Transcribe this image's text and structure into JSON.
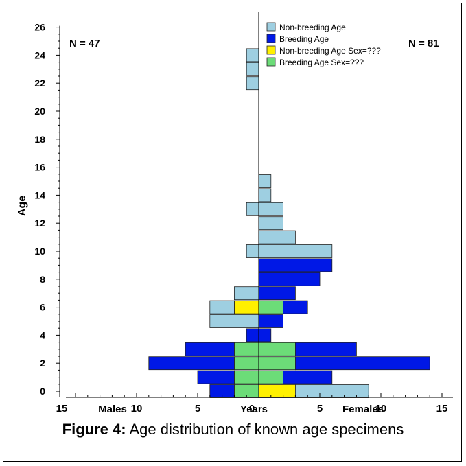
{
  "chart_data": {
    "type": "bar",
    "orientation": "horizontal-population-pyramid",
    "ylabel": "Age",
    "y_ticks": [
      0,
      2,
      4,
      6,
      8,
      10,
      12,
      14,
      16,
      18,
      20,
      22,
      24,
      26
    ],
    "x_tick_labels": [
      "15",
      "10",
      "5",
      "0",
      "5",
      "10",
      "15"
    ],
    "x_tick_values": [
      -15,
      -10,
      -5,
      0,
      5,
      10,
      15
    ],
    "xlim": [
      -15,
      15
    ],
    "ylim": [
      0,
      26
    ],
    "xlabel_left": "Males",
    "xlabel_center": "Years",
    "xlabel_right": "Females",
    "n_males": "N = 47",
    "n_females": "N = 81",
    "legend_position": "top-right",
    "legend": [
      {
        "key": "nonbreeding",
        "label": "Non-breeding Age",
        "color": "#9ecfe1"
      },
      {
        "key": "breeding",
        "label": "Breeding Age",
        "color": "#0018e6"
      },
      {
        "key": "nb_unknown",
        "label": "Non-breeding Age Sex=???",
        "color": "#fff000"
      },
      {
        "key": "b_unknown",
        "label": "Breeding Age Sex=???",
        "color": "#6cdc78"
      }
    ],
    "bars": [
      {
        "age": 0,
        "sex": "unknown",
        "category": "b_unknown",
        "from": -2,
        "to": 0
      },
      {
        "age": 0,
        "sex": "male",
        "category": "breeding",
        "from": -4,
        "to": -2
      },
      {
        "age": 0,
        "sex": "unknown",
        "category": "nb_unknown",
        "from": 0,
        "to": 3
      },
      {
        "age": 0,
        "sex": "female",
        "category": "nonbreeding",
        "from": 3,
        "to": 9
      },
      {
        "age": 1,
        "sex": "unknown",
        "category": "b_unknown",
        "from": -2,
        "to": 0
      },
      {
        "age": 1,
        "sex": "male",
        "category": "breeding",
        "from": -5,
        "to": -2
      },
      {
        "age": 1,
        "sex": "unknown",
        "category": "b_unknown",
        "from": 0,
        "to": 2
      },
      {
        "age": 1,
        "sex": "female",
        "category": "breeding",
        "from": 2,
        "to": 6
      },
      {
        "age": 2,
        "sex": "unknown",
        "category": "b_unknown",
        "from": -2,
        "to": 0
      },
      {
        "age": 2,
        "sex": "male",
        "category": "breeding",
        "from": -9,
        "to": -2
      },
      {
        "age": 2,
        "sex": "unknown",
        "category": "b_unknown",
        "from": 0,
        "to": 3
      },
      {
        "age": 2,
        "sex": "female",
        "category": "breeding",
        "from": 3,
        "to": 14
      },
      {
        "age": 3,
        "sex": "unknown",
        "category": "b_unknown",
        "from": -2,
        "to": 0
      },
      {
        "age": 3,
        "sex": "male",
        "category": "breeding",
        "from": -6,
        "to": -2
      },
      {
        "age": 3,
        "sex": "unknown",
        "category": "b_unknown",
        "from": 0,
        "to": 3
      },
      {
        "age": 3,
        "sex": "female",
        "category": "breeding",
        "from": 3,
        "to": 8
      },
      {
        "age": 4,
        "sex": "male",
        "category": "breeding",
        "from": -1,
        "to": 0
      },
      {
        "age": 4,
        "sex": "female",
        "category": "breeding",
        "from": 0,
        "to": 1
      },
      {
        "age": 5,
        "sex": "male",
        "category": "nonbreeding",
        "from": -4,
        "to": 0
      },
      {
        "age": 5,
        "sex": "female",
        "category": "breeding",
        "from": 0,
        "to": 2
      },
      {
        "age": 6,
        "sex": "unknown",
        "category": "nb_unknown",
        "from": -2,
        "to": 0
      },
      {
        "age": 6,
        "sex": "male",
        "category": "nonbreeding",
        "from": -4,
        "to": -2
      },
      {
        "age": 6,
        "sex": "unknown",
        "category": "b_unknown",
        "from": 0,
        "to": 2
      },
      {
        "age": 6,
        "sex": "female",
        "category": "breeding",
        "from": 2,
        "to": 4
      },
      {
        "age": 7,
        "sex": "male",
        "category": "nonbreeding",
        "from": -2,
        "to": 0
      },
      {
        "age": 7,
        "sex": "female",
        "category": "breeding",
        "from": 0,
        "to": 3
      },
      {
        "age": 8,
        "sex": "female",
        "category": "breeding",
        "from": 0,
        "to": 5
      },
      {
        "age": 9,
        "sex": "female",
        "category": "breeding",
        "from": 0,
        "to": 6
      },
      {
        "age": 10,
        "sex": "male",
        "category": "nonbreeding",
        "from": -1,
        "to": 0
      },
      {
        "age": 10,
        "sex": "female",
        "category": "nonbreeding",
        "from": 0,
        "to": 6
      },
      {
        "age": 11,
        "sex": "female",
        "category": "nonbreeding",
        "from": 0,
        "to": 3
      },
      {
        "age": 12,
        "sex": "female",
        "category": "nonbreeding",
        "from": 0,
        "to": 2
      },
      {
        "age": 13,
        "sex": "male",
        "category": "nonbreeding",
        "from": -1,
        "to": 0
      },
      {
        "age": 13,
        "sex": "female",
        "category": "nonbreeding",
        "from": 0,
        "to": 2
      },
      {
        "age": 14,
        "sex": "female",
        "category": "nonbreeding",
        "from": 0,
        "to": 1
      },
      {
        "age": 15,
        "sex": "female",
        "category": "nonbreeding",
        "from": 0,
        "to": 1
      },
      {
        "age": 22,
        "sex": "male",
        "category": "nonbreeding",
        "from": -1,
        "to": 0
      },
      {
        "age": 23,
        "sex": "male",
        "category": "nonbreeding",
        "from": -1,
        "to": 0
      },
      {
        "age": 24,
        "sex": "male",
        "category": "nonbreeding",
        "from": -1,
        "to": 0
      }
    ]
  },
  "caption": {
    "label": "Figure 4:",
    "text": " Age distribution of known age specimens"
  }
}
